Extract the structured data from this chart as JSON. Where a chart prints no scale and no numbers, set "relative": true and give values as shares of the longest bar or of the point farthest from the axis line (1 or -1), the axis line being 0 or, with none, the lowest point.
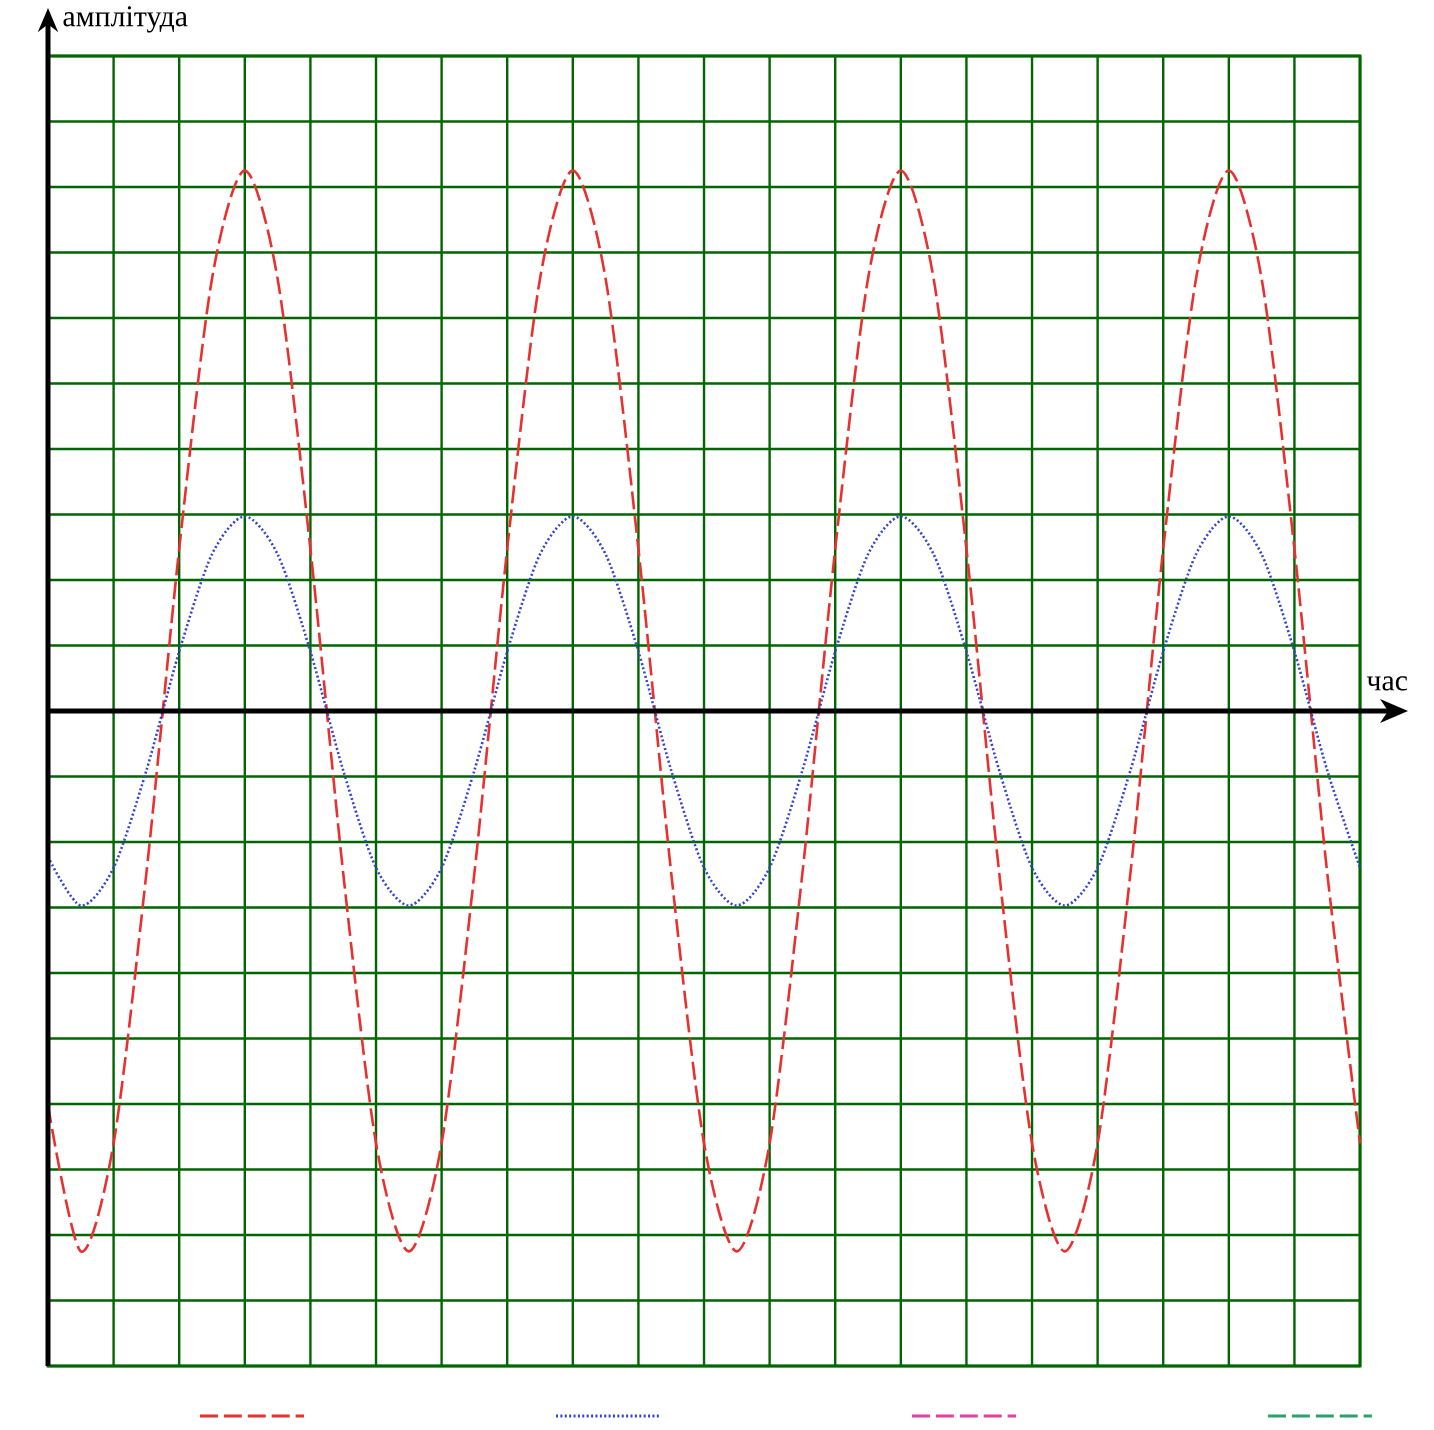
{
  "chart_data": {
    "type": "line",
    "xlabel": "час",
    "ylabel": "амплітуда",
    "relative": true,
    "grid": true,
    "categories": [
      null,
      null,
      null,
      null,
      null,
      null,
      null,
      null,
      null,
      null,
      null,
      null,
      null,
      null,
      null,
      null,
      null,
      null,
      null,
      null,
      null,
      null,
      null,
      null,
      null,
      null,
      null,
      null,
      null,
      null,
      null,
      null,
      null,
      null,
      null,
      null,
      null,
      null,
      null,
      null,
      null
    ],
    "series": [
      {
        "color": "#e8312f",
        "line_style": "dashed",
        "values": [
          -0.73,
          -1,
          -0.8,
          -0.3,
          0.3,
          0.8,
          1,
          0.8,
          0.3,
          -0.3,
          -0.8,
          -1,
          -0.8,
          -0.3,
          0.3,
          0.8,
          1,
          0.8,
          0.3,
          -0.3,
          -0.8,
          -1,
          -0.8,
          -0.3,
          0.3,
          0.8,
          1,
          0.8,
          0.3,
          -0.3,
          -0.8,
          -1,
          -0.8,
          -0.3,
          0.3,
          0.8,
          1,
          0.8,
          0.3,
          -0.3,
          -0.8
        ]
      },
      {
        "color": "#3344cc",
        "line_style": "dotted",
        "values": [
          -0.27,
          -0.36,
          -0.29,
          -0.11,
          0.11,
          0.29,
          0.36,
          0.29,
          0.11,
          -0.11,
          -0.29,
          -0.36,
          -0.29,
          -0.11,
          0.11,
          0.29,
          0.36,
          0.29,
          0.11,
          -0.11,
          -0.29,
          -0.36,
          -0.29,
          -0.11,
          0.11,
          0.29,
          0.36,
          0.29,
          0.11,
          -0.11,
          -0.29,
          -0.36,
          -0.29,
          -0.11,
          0.11,
          0.29,
          0.36,
          0.29,
          0.11,
          -0.11,
          -0.29
        ]
      },
      {
        "color": "#e040a0",
        "line_style": "dashed",
        "values": [
          null,
          null,
          null,
          null,
          null,
          null,
          null,
          null,
          null,
          null,
          null,
          null,
          null,
          null,
          null,
          null,
          null,
          null,
          null,
          null,
          null,
          null,
          null,
          null,
          null,
          null,
          null,
          null,
          null,
          null,
          null,
          null,
          null,
          null,
          null,
          null,
          null,
          null,
          null,
          null,
          null
        ]
      },
      {
        "color": "#2e9e6e",
        "line_style": "dashed",
        "values": [
          null,
          null,
          null,
          null,
          null,
          null,
          null,
          null,
          null,
          null,
          null,
          null,
          null,
          null,
          null,
          null,
          null,
          null,
          null,
          null,
          null,
          null,
          null,
          null,
          null,
          null,
          null,
          null,
          null,
          null,
          null,
          null,
          null,
          null,
          null,
          null,
          null,
          null,
          null,
          null,
          null
        ]
      }
    ]
  }
}
